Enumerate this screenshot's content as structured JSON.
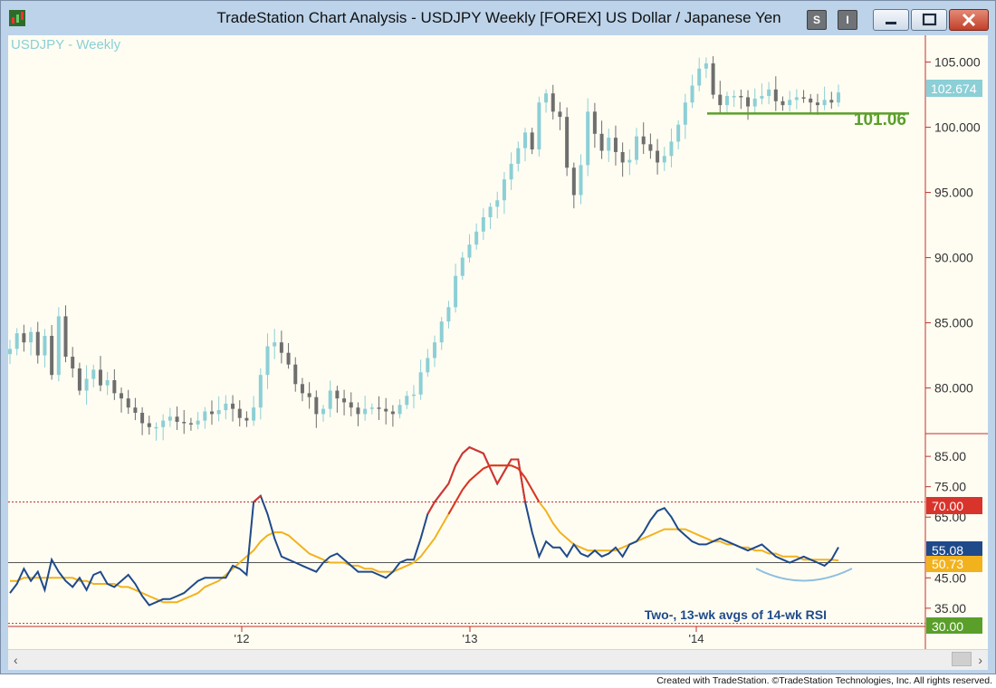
{
  "window": {
    "title": "TradeStation Chart Analysis - USDJPY Weekly [FOREX] US Dollar / Japanese Yen",
    "buttons": [
      "S",
      "I"
    ]
  },
  "colors": {
    "background": "#fffdf2",
    "up_candle": "#8ccfd6",
    "down_candle": "#6e6e6e",
    "support_line": "#5a9f2a",
    "rsi_2wk": "#1f4a8a",
    "rsi_13wk": "#f2b21e",
    "rsi_overbought": "#d8342c",
    "level_line": "#c0302a"
  },
  "price_panel": {
    "label": "USDJPY - Weekly",
    "last_price": "102.674",
    "support_label": "101.06",
    "axis_ticks": [
      "105.000",
      "100.000",
      "95.000",
      "90.000",
      "85.000",
      "80.000"
    ]
  },
  "rsi_panel": {
    "label": "Two-, 13-wk avgs of 14-wk RSI",
    "axis_ticks": [
      "85.00",
      "75.00",
      "65.00",
      "45.00",
      "35.00"
    ],
    "level_70": "70.00",
    "level_30": "30.00",
    "rsi2_value": "55.08",
    "rsi13_value": "50.73"
  },
  "x_axis": {
    "labels": [
      "'12",
      "'13",
      "'14"
    ]
  },
  "footer": "Created with TradeStation. ©TradeStation Technologies, Inc. All rights reserved.",
  "chart_data": {
    "type": "candlestick",
    "title": "USDJPY - Weekly",
    "weeks_start": "2011-04",
    "price_ylim": [
      76.5,
      106.5
    ],
    "price_axis_ticks": [
      105,
      100,
      95,
      90,
      85,
      80
    ],
    "support_level": 101.06,
    "last_price": 102.674,
    "closes": [
      83.0,
      84.2,
      83.5,
      84.3,
      82.5,
      84.0,
      81.0,
      85.5,
      82.4,
      81.5,
      79.8,
      80.7,
      81.4,
      80.2,
      80.6,
      79.6,
      79.2,
      78.5,
      78.1,
      77.3,
      77.0,
      77.0,
      77.5,
      77.8,
      77.4,
      77.3,
      77.2,
      77.5,
      78.2,
      78.0,
      78.3,
      78.8,
      78.4,
      77.7,
      77.5,
      78.5,
      81.0,
      83.2,
      83.5,
      82.7,
      81.8,
      80.3,
      79.6,
      79.3,
      78.0,
      78.4,
      79.8,
      79.2,
      78.9,
      78.5,
      78.0,
      78.4,
      78.5,
      78.4,
      78.2,
      78.0,
      78.7,
      79.4,
      79.5,
      81.2,
      82.3,
      83.5,
      85.1,
      86.2,
      88.6,
      90.0,
      91.0,
      92.0,
      93.1,
      93.9,
      94.4,
      96.0,
      97.2,
      98.4,
      99.6,
      98.3,
      101.9,
      102.6,
      101.2,
      100.8,
      96.9,
      94.8,
      97.1,
      101.2,
      99.5,
      98.2,
      99.2,
      98.1,
      97.3,
      97.5,
      99.3,
      98.7,
      98.2,
      97.3,
      97.8,
      98.9,
      100.2,
      101.9,
      103.2,
      104.5,
      104.9,
      102.5,
      101.7,
      102.4,
      102.4,
      102.3,
      101.6,
      102.2,
      102.4,
      102.9,
      102.0,
      101.7,
      102.1,
      102.3,
      102.2,
      101.9,
      101.7,
      102.1,
      101.9,
      102.67
    ],
    "rsi_ylim": [
      29,
      91
    ],
    "rsi_axis_ticks": [
      85,
      75,
      65,
      45,
      35
    ],
    "rsi_levels": [
      70,
      30
    ],
    "series": [
      {
        "name": "Two-, 13-wk avgs of 14-wk RSI",
        "values": [
          40,
          43,
          48,
          44,
          47,
          41,
          51,
          47,
          44,
          42,
          45,
          41,
          46,
          47,
          43,
          42,
          44,
          46,
          43,
          39,
          36,
          37,
          38,
          38,
          39,
          40,
          42,
          44,
          45,
          45,
          45,
          45,
          49,
          48,
          46,
          70,
          72,
          66,
          58,
          52,
          51,
          50,
          49,
          48,
          47,
          50,
          52,
          53,
          51,
          49,
          47,
          47,
          47,
          46,
          45,
          47,
          50,
          51,
          51,
          58,
          66,
          70,
          73,
          76,
          82,
          86,
          88,
          87,
          86,
          81,
          76,
          80,
          84,
          84,
          70,
          60,
          52,
          57,
          55,
          55,
          52,
          56,
          53,
          52,
          54,
          52,
          53,
          55,
          52,
          56,
          57,
          60,
          64,
          67,
          68,
          65,
          61,
          59,
          57,
          56,
          56,
          57,
          58,
          57,
          56,
          55,
          54,
          55,
          56,
          54,
          52,
          51,
          50,
          51,
          52,
          51,
          50,
          49,
          51,
          55.08
        ]
      },
      {
        "name": "13-wk",
        "values": [
          44,
          44,
          45,
          45,
          45,
          45,
          45,
          45,
          45,
          45,
          44,
          44,
          43,
          43,
          43,
          43,
          42,
          42,
          41,
          40,
          39,
          38,
          37,
          37,
          37,
          38,
          39,
          40,
          42,
          43,
          44,
          46,
          48,
          50,
          52,
          54,
          57,
          59,
          60,
          60,
          59,
          57,
          55,
          53,
          52,
          51,
          50,
          50,
          50,
          49,
          49,
          48,
          48,
          47,
          47,
          47,
          48,
          49,
          50,
          52,
          55,
          58,
          62,
          66,
          70,
          74,
          77,
          79,
          81,
          82,
          82,
          82,
          82,
          81,
          78,
          74,
          70,
          67,
          63,
          60,
          58,
          56,
          55,
          54,
          54,
          54,
          54,
          54,
          55,
          56,
          57,
          58,
          59,
          60,
          61,
          61,
          61,
          61,
          60,
          59,
          58,
          57,
          57,
          56,
          56,
          55,
          55,
          54,
          54,
          53,
          53,
          52,
          52,
          52,
          51,
          51,
          51,
          51,
          51,
          50.73
        ]
      }
    ]
  }
}
